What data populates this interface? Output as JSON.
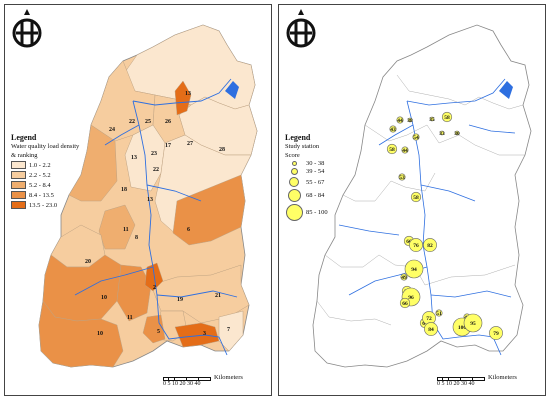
{
  "left_map": {
    "legend": {
      "title": "Legend",
      "subtitle_line1": "Water quality load density",
      "subtitle_line2": "& ranking",
      "classes": [
        {
          "label": "1.0 - 2.2",
          "color": "#fbe7cf"
        },
        {
          "label": "2.2 - 5.2",
          "color": "#f6cd9f"
        },
        {
          "label": "5.2 - 8.4",
          "color": "#efae6f"
        },
        {
          "label": "8.4 - 13.5",
          "color": "#ea9147"
        },
        {
          "label": "13.5 - 23.0",
          "color": "#e46d18"
        }
      ]
    },
    "region_labels": [
      "13",
      "22",
      "25",
      "26",
      "24",
      "27",
      "17",
      "28",
      "23",
      "13",
      "22",
      "18",
      "13",
      "11",
      "6",
      "8",
      "20",
      "10",
      "11",
      "2",
      "19",
      "21",
      "10",
      "5",
      "3",
      "7"
    ],
    "scale": {
      "ticks": "0 5 10    20    30    40",
      "unit": "Kilometers"
    }
  },
  "right_map": {
    "legend": {
      "title": "Legend",
      "subtitle_line1": "Study station",
      "subtitle_line2": "Score",
      "classes": [
        {
          "label": "30 - 38",
          "size": "xs"
        },
        {
          "label": "39 - 54",
          "size": "s"
        },
        {
          "label": "55 - 67",
          "size": "m"
        },
        {
          "label": "68 - 84",
          "size": "l"
        },
        {
          "label": "85 - 100",
          "size": "xl"
        }
      ]
    },
    "stations": [
      "44",
      "38",
      "35",
      "58",
      "43",
      "54",
      "33",
      "30",
      "58",
      "44",
      "53",
      "58",
      "66",
      "76",
      "82",
      "94",
      "49",
      "56",
      "96",
      "66",
      "51",
      "48",
      "67",
      "72",
      "84",
      "100",
      "95",
      "79"
    ],
    "scale": {
      "ticks": "0 5 10    20    30    40",
      "unit": "Kilometers"
    }
  },
  "colors": {
    "river": "#2e6fe0",
    "lake": "#2e6fe0",
    "border": "#7a7a7a",
    "circle_fill": "#ffff66"
  },
  "icons": [
    "compass-logo-icon"
  ]
}
